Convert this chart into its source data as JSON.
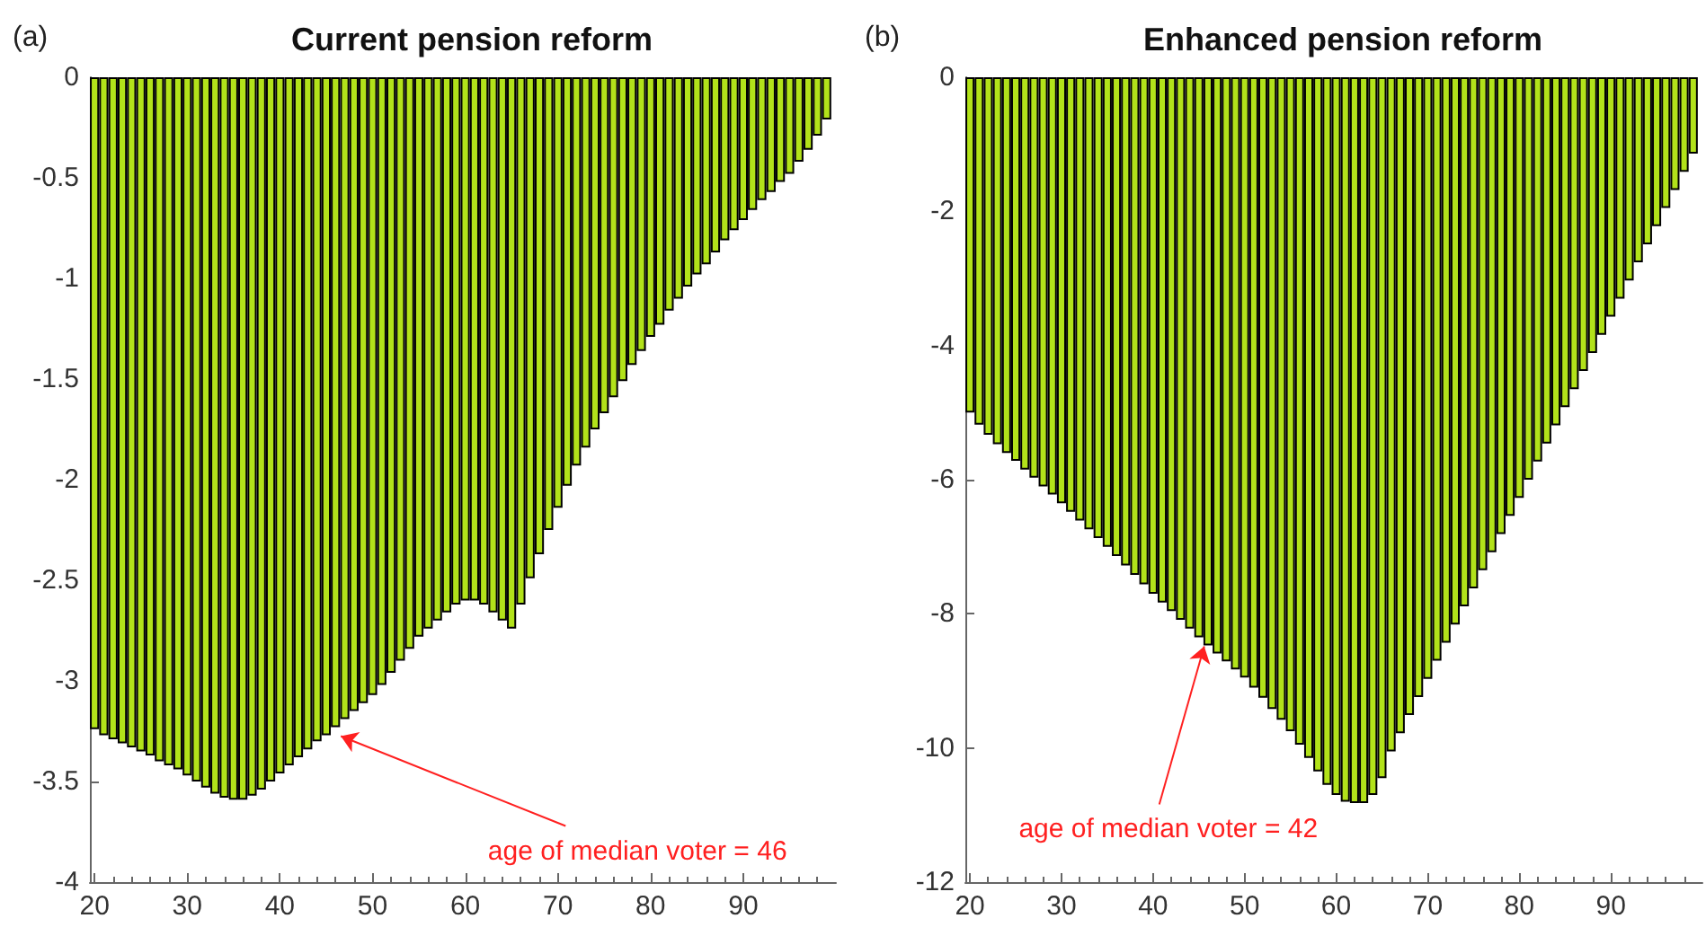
{
  "chart_data": [
    {
      "type": "bar",
      "subtitle": "(a)",
      "title": "Current pension reform",
      "color": "#b2e21a",
      "x": [
        20,
        21,
        22,
        23,
        24,
        25,
        26,
        27,
        28,
        29,
        30,
        31,
        32,
        33,
        34,
        35,
        36,
        37,
        38,
        39,
        40,
        41,
        42,
        43,
        44,
        45,
        46,
        47,
        48,
        49,
        50,
        51,
        52,
        53,
        54,
        55,
        56,
        57,
        58,
        59,
        60,
        61,
        62,
        63,
        64,
        65,
        66,
        67,
        68,
        69,
        70,
        71,
        72,
        73,
        74,
        75,
        76,
        77,
        78,
        79,
        80,
        81,
        82,
        83,
        84,
        85,
        86,
        87,
        88,
        89,
        90,
        91,
        92,
        93,
        94,
        95,
        96,
        97,
        98,
        99
      ],
      "values": [
        -3.24,
        -3.27,
        -3.29,
        -3.31,
        -3.33,
        -3.35,
        -3.37,
        -3.4,
        -3.42,
        -3.44,
        -3.47,
        -3.5,
        -3.53,
        -3.56,
        -3.58,
        -3.59,
        -3.59,
        -3.57,
        -3.54,
        -3.5,
        -3.46,
        -3.42,
        -3.38,
        -3.34,
        -3.3,
        -3.27,
        -3.23,
        -3.19,
        -3.15,
        -3.11,
        -3.07,
        -3.02,
        -2.96,
        -2.9,
        -2.84,
        -2.78,
        -2.74,
        -2.7,
        -2.66,
        -2.62,
        -2.6,
        -2.6,
        -2.62,
        -2.66,
        -2.7,
        -2.74,
        -2.62,
        -2.49,
        -2.37,
        -2.25,
        -2.14,
        -2.03,
        -1.93,
        -1.84,
        -1.75,
        -1.67,
        -1.59,
        -1.51,
        -1.43,
        -1.36,
        -1.29,
        -1.23,
        -1.16,
        -1.1,
        -1.04,
        -0.98,
        -0.93,
        -0.87,
        -0.81,
        -0.76,
        -0.71,
        -0.66,
        -0.61,
        -0.57,
        -0.52,
        -0.48,
        -0.42,
        -0.36,
        -0.29,
        -0.21
      ],
      "xlim": [
        19.5,
        100
      ],
      "xticks": [
        20,
        30,
        40,
        50,
        60,
        70,
        80,
        90
      ],
      "ylim": [
        -4,
        0
      ],
      "yticks": [
        0,
        -0.5,
        -1,
        -1.5,
        -2,
        -2.5,
        -3,
        -3.5,
        -4
      ],
      "annotations": [
        {
          "text": "age of median voter = 46",
          "x": 46,
          "y": -3.23
        }
      ]
    },
    {
      "type": "bar",
      "subtitle": "(b)",
      "title": "Enhanced pension reform",
      "color": "#b2e21a",
      "x": [
        20,
        21,
        22,
        23,
        24,
        25,
        26,
        27,
        28,
        29,
        30,
        31,
        32,
        33,
        34,
        35,
        36,
        37,
        38,
        39,
        40,
        41,
        42,
        43,
        44,
        45,
        46,
        47,
        48,
        49,
        50,
        51,
        52,
        53,
        54,
        55,
        56,
        57,
        58,
        59,
        60,
        61,
        62,
        63,
        64,
        65,
        66,
        67,
        68,
        69,
        70,
        71,
        72,
        73,
        74,
        75,
        76,
        77,
        78,
        79,
        80,
        81,
        82,
        83,
        84,
        85,
        86,
        87,
        88,
        89,
        90,
        91,
        92,
        93,
        94,
        95,
        96,
        97,
        98,
        99
      ],
      "values": [
        -5.0,
        -5.18,
        -5.33,
        -5.47,
        -5.6,
        -5.72,
        -5.85,
        -5.97,
        -6.1,
        -6.22,
        -6.35,
        -6.48,
        -6.61,
        -6.74,
        -6.87,
        -7.0,
        -7.14,
        -7.28,
        -7.42,
        -7.56,
        -7.7,
        -7.83,
        -7.96,
        -8.09,
        -8.22,
        -8.35,
        -8.47,
        -8.59,
        -8.71,
        -8.83,
        -8.95,
        -9.1,
        -9.25,
        -9.42,
        -9.58,
        -9.75,
        -9.95,
        -10.15,
        -10.35,
        -10.55,
        -10.7,
        -10.8,
        -10.82,
        -10.82,
        -10.7,
        -10.45,
        -10.05,
        -9.78,
        -9.51,
        -9.24,
        -8.97,
        -8.7,
        -8.43,
        -8.16,
        -7.89,
        -7.62,
        -7.35,
        -7.08,
        -6.81,
        -6.54,
        -6.27,
        -6.0,
        -5.73,
        -5.46,
        -5.19,
        -4.92,
        -4.65,
        -4.38,
        -4.11,
        -3.84,
        -3.57,
        -3.3,
        -3.03,
        -2.76,
        -2.49,
        -2.22,
        -1.95,
        -1.68,
        -1.41,
        -1.14
      ],
      "xlim": [
        19.5,
        100
      ],
      "xticks": [
        20,
        30,
        40,
        50,
        60,
        70,
        80,
        90
      ],
      "ylim": [
        -12,
        0
      ],
      "yticks": [
        0,
        -2,
        -4,
        -6,
        -8,
        -10,
        -12
      ],
      "annotations": [
        {
          "text": "age of median voter = 42",
          "x": 45,
          "y": -8.35
        }
      ]
    }
  ]
}
